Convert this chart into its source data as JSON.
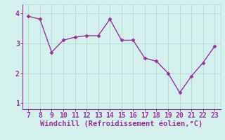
{
  "x": [
    7,
    8,
    9,
    10,
    11,
    12,
    13,
    14,
    15,
    16,
    17,
    18,
    19,
    20,
    21,
    22,
    23
  ],
  "y": [
    3.9,
    3.8,
    2.7,
    3.1,
    3.2,
    3.25,
    3.25,
    3.8,
    3.1,
    3.1,
    2.5,
    2.4,
    2.0,
    1.35,
    1.9,
    2.35,
    2.9
  ],
  "line_color": "#993399",
  "marker": "D",
  "markersize": 2.5,
  "linewidth": 1.0,
  "xlabel": "Windchill (Refroidissement éolien,°C)",
  "xlabel_color": "#993399",
  "xlabel_fontsize": 7.5,
  "background_color": "#d4f0ec",
  "grid_color": "#b8dcd8",
  "tick_color": "#993399",
  "tick_labelsize": 7.0,
  "xlim": [
    6.5,
    23.5
  ],
  "ylim": [
    0.8,
    4.3
  ],
  "yticks": [
    1,
    2,
    3,
    4
  ],
  "xticks": [
    7,
    8,
    9,
    10,
    11,
    12,
    13,
    14,
    15,
    16,
    17,
    18,
    19,
    20,
    21,
    22,
    23
  ],
  "spine_color": "#993399",
  "spine_bottom_color": "#993399"
}
